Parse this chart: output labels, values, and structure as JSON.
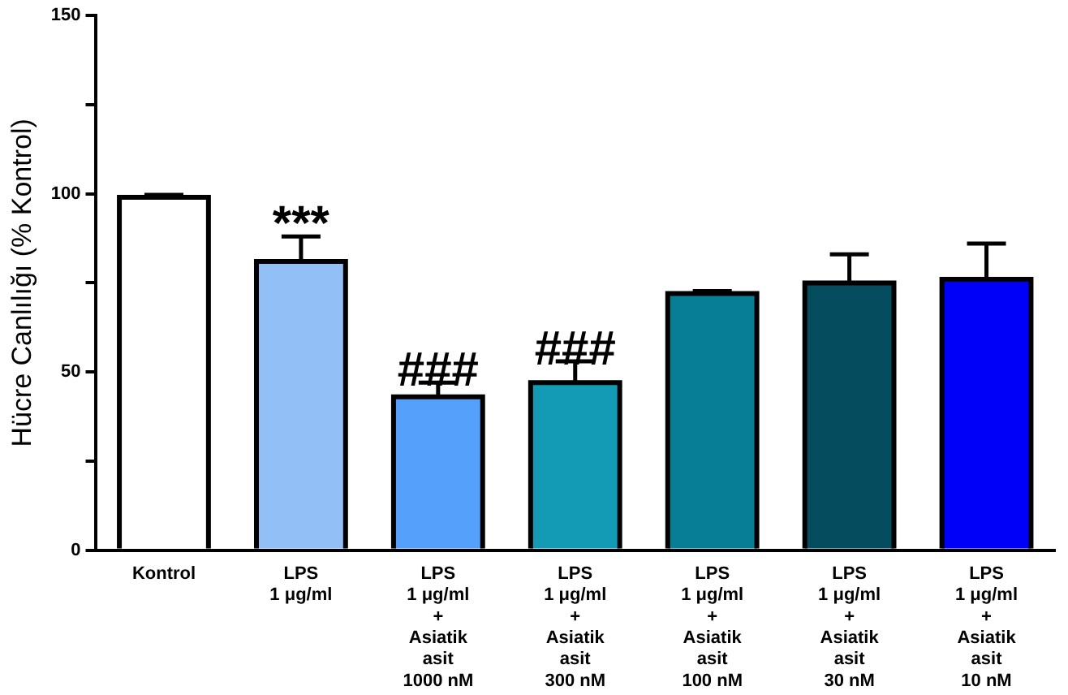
{
  "chart_data": {
    "type": "bar",
    "ylabel": "Hücre Canlılığı (% Kontrol)",
    "categories": [
      "Kontrol",
      "LPS\n1 μg/ml",
      "LPS\n1 μg/ml\n+\nAsiatik\nasit\n1000 nM",
      "LPS\n1 μg/ml\n+\nAsiatik\nasit\n300 nM",
      "LPS\n1 μg/ml\n+\nAsiatik\nasit\n100 nM",
      "LPS\n1 μg/ml\n+\nAsiatik\nasit\n30 nM",
      "LPS\n1 μg/ml\n+\nAsiatik\nasit\n10 nM"
    ],
    "values": [
      99,
      81,
      43,
      47,
      72,
      75,
      76
    ],
    "errors": [
      0.7,
      7,
      4,
      6,
      0.7,
      8,
      10
    ],
    "colors": [
      "#ffffff",
      "#93bff7",
      "#55a0fb",
      "#139bb5",
      "#087d96",
      "#054c5e",
      "#0000fa"
    ],
    "ylim": [
      0,
      150
    ],
    "yticks": [
      0,
      {
        "value": 25,
        "label": null
      },
      50,
      {
        "value": 75,
        "label": null
      },
      100,
      {
        "value": 125,
        "label": null
      },
      150
    ],
    "grid": false,
    "legend": false,
    "annotations": [
      {
        "text": "***",
        "x": "LPS\n1 μg/ml",
        "y": 88
      },
      {
        "text": "###",
        "x": "LPS\n1 μg/ml\n+\nAsiatik\nasit\n1000 nM",
        "y": 47
      },
      {
        "text": "###",
        "x": "LPS\n1 μg/ml\n+\nAsiatik\nasit\n300 nM",
        "y": 53
      }
    ]
  }
}
